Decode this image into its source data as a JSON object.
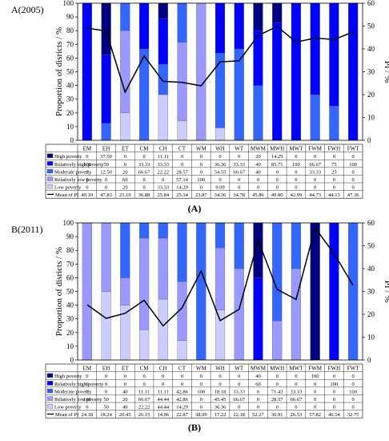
{
  "colors": {
    "high": "#000080",
    "rel_high": "#0000ff",
    "moderate": "#3366ff",
    "rel_low": "#9999ff",
    "low": "#ccccff",
    "line": "#000000"
  },
  "chart_data": [
    {
      "type": "bar",
      "stacked": true,
      "panel_title": "A(2005)",
      "caption": "(A)",
      "ylabel": "Proportion of disricts / %",
      "y2label": "PI / %",
      "ylim": [
        0,
        100
      ],
      "y2lim": [
        0,
        60
      ],
      "yticks": [
        "0",
        "10",
        "20",
        "30",
        "40",
        "50",
        "60",
        "70",
        "80",
        "90",
        "100"
      ],
      "y2ticks": [
        "0",
        "10",
        "20",
        "30",
        "40",
        "50",
        "60"
      ],
      "categories": [
        "EM",
        "EH",
        "ET",
        "CM",
        "CH",
        "CT",
        "WM",
        "WH",
        "WT",
        "MWM",
        "MWH",
        "MWT",
        "FWM",
        "FWH",
        "FWT"
      ],
      "series": [
        {
          "name": "High poverty",
          "color_key": "high",
          "values": [
            0,
            37.5,
            0,
            0,
            11.11,
            0,
            0,
            0,
            0,
            20,
            14.29,
            0,
            0,
            0,
            0
          ],
          "labels": [
            "0",
            "37.50",
            "0",
            "0",
            "11.11",
            "0",
            "0",
            "0",
            "0",
            "20",
            "14.29",
            "0",
            "0",
            "0",
            "0"
          ]
        },
        {
          "name": "Relatively high poverty",
          "color_key": "rel_high",
          "values": [
            100,
            50,
            0,
            33.33,
            33.33,
            0,
            0,
            36.36,
            33.33,
            40,
            85.71,
            100,
            66.67,
            75,
            100
          ],
          "labels": [
            "100",
            "50",
            "0",
            "33.33",
            "33.33",
            "0",
            "0",
            "36.36",
            "33.33",
            "40",
            "85.71",
            "100",
            "66.67",
            "75",
            "100"
          ]
        },
        {
          "name": "Moderate poverty",
          "color_key": "moderate",
          "values": [
            0,
            12.5,
            20,
            66.67,
            22.22,
            28.57,
            0,
            54.55,
            66.67,
            40,
            0,
            0,
            33.33,
            25,
            0
          ],
          "labels": [
            "0",
            "12.50",
            "20",
            "66.67",
            "22.22",
            "28.57",
            "0",
            "54.55",
            "66.67",
            "40",
            "0",
            "0",
            "33.33",
            "25",
            "0"
          ]
        },
        {
          "name": "Relatively low poverty",
          "color_key": "rel_low",
          "values": [
            0,
            0,
            60,
            0,
            0,
            57.14,
            100,
            0,
            0,
            0,
            0,
            0,
            0,
            0,
            0
          ],
          "labels": [
            "0",
            "0",
            "60",
            "0",
            "0",
            "57.14",
            "100",
            "0",
            "0",
            "0",
            "0",
            "0",
            "0",
            "0",
            "0"
          ]
        },
        {
          "name": "Low poverty",
          "color_key": "low",
          "values": [
            0,
            0,
            20,
            0,
            33.33,
            14.29,
            0,
            9.09,
            0,
            0,
            0,
            0,
            0,
            0,
            0
          ],
          "labels": [
            "0",
            "0",
            "20",
            "0",
            "33.33",
            "14.29",
            "0",
            "9.09",
            "0",
            "0",
            "0",
            "0",
            "0",
            "0",
            "0"
          ]
        }
      ],
      "line": {
        "name": "Mean of PI",
        "axis": "right",
        "values": [
          49.1,
          47.83,
          21.1,
          36.88,
          25.84,
          25.34,
          23.87,
          34.36,
          34.78,
          45.86,
          49.8,
          42.99,
          44.73,
          44.13,
          47.36
        ],
        "labels": [
          "49.10",
          "47.83",
          "21.10",
          "36.88",
          "25.84",
          "25.34",
          "23.87",
          "34.36",
          "34.78",
          "45.86",
          "49.80",
          "42.99",
          "44.73",
          "44.13",
          "47.36"
        ]
      }
    },
    {
      "type": "bar",
      "stacked": true,
      "panel_title": "B(2011)",
      "caption": "(B)",
      "ylabel": "Proportion of disricts / %",
      "y2label": "PI / %",
      "ylim": [
        0,
        100
      ],
      "y2lim": [
        0,
        60
      ],
      "yticks": [
        "0",
        "10",
        "20",
        "30",
        "40",
        "50",
        "60",
        "70",
        "80",
        "90",
        "100"
      ],
      "y2ticks": [
        "0",
        "10",
        "20",
        "30",
        "40",
        "50",
        "60"
      ],
      "categories": [
        "EM",
        "EH",
        "ET",
        "CM",
        "CH",
        "CT",
        "WM",
        "WH",
        "WT",
        "MWM",
        "MWH",
        "MWT",
        "FWM",
        "FWH",
        "FWT"
      ],
      "series": [
        {
          "name": "High poverty",
          "color_key": "high",
          "values": [
            0,
            0,
            0,
            0,
            0,
            0,
            0,
            0,
            0,
            40,
            0,
            0,
            100,
            0,
            0
          ],
          "labels": [
            "0",
            "0",
            "0",
            "0",
            "0",
            "0",
            "0",
            "0",
            "0",
            "40",
            "0",
            "0",
            "100",
            "0",
            "0"
          ]
        },
        {
          "name": "Relatively high poverty",
          "color_key": "rel_high",
          "values": [
            0,
            0,
            0,
            0,
            0,
            0,
            0,
            0,
            0,
            60,
            0,
            0,
            0,
            100,
            0
          ],
          "labels": [
            "0",
            "0",
            "0",
            "0",
            "0",
            "0",
            "0",
            "0",
            "0",
            "60",
            "0",
            "0",
            "0",
            "100",
            "0"
          ]
        },
        {
          "name": "Moderate poverty",
          "color_key": "moderate",
          "values": [
            0,
            0,
            40,
            11.11,
            11.11,
            42.86,
            100,
            18.18,
            33.33,
            0,
            71.43,
            33.33,
            0,
            0,
            100
          ],
          "labels": [
            "0",
            "0",
            "40",
            "11.11",
            "11.11",
            "42.86",
            "100",
            "18.18",
            "33.33",
            "0",
            "71.43",
            "33.33",
            "0",
            "0",
            "100"
          ]
        },
        {
          "name": "Relatively low poverty",
          "color_key": "rel_low",
          "values": [
            100,
            50,
            20,
            66.67,
            44.44,
            42.86,
            0,
            45.45,
            66.67,
            0,
            28.57,
            66.67,
            0,
            0,
            0
          ],
          "labels": [
            "100",
            "50",
            "20",
            "66.67",
            "44.44",
            "42.86",
            "0",
            "45.45",
            "66.67",
            "0",
            "28.57",
            "66.67",
            "0",
            "0",
            "0"
          ]
        },
        {
          "name": "Low poverty",
          "color_key": "low",
          "values": [
            0,
            50,
            40,
            22.22,
            44.44,
            14.29,
            0,
            36.36,
            0,
            0,
            0,
            0,
            0,
            0,
            0
          ],
          "labels": [
            "0",
            "50",
            "40",
            "22.22",
            "44.44",
            "14.29",
            "0",
            "36.36",
            "0",
            "0",
            "0",
            "0",
            "0",
            "0",
            "0"
          ]
        }
      ],
      "line": {
        "name": "Mean of PI",
        "axis": "right",
        "values": [
          24.18,
          18.24,
          20.45,
          26.15,
          14.96,
          22.87,
          38.99,
          17.22,
          22.18,
          52.27,
          30.91,
          26.53,
          57.82,
          46.54,
          32.75
        ],
        "labels": [
          "24.18",
          "18.24",
          "20.45",
          "26.15",
          "14.96",
          "22.87",
          "38.99",
          "17.22",
          "22.18",
          "52.27",
          "30.91",
          "26.53",
          "57.82",
          "46.54",
          "32.75"
        ]
      }
    }
  ]
}
